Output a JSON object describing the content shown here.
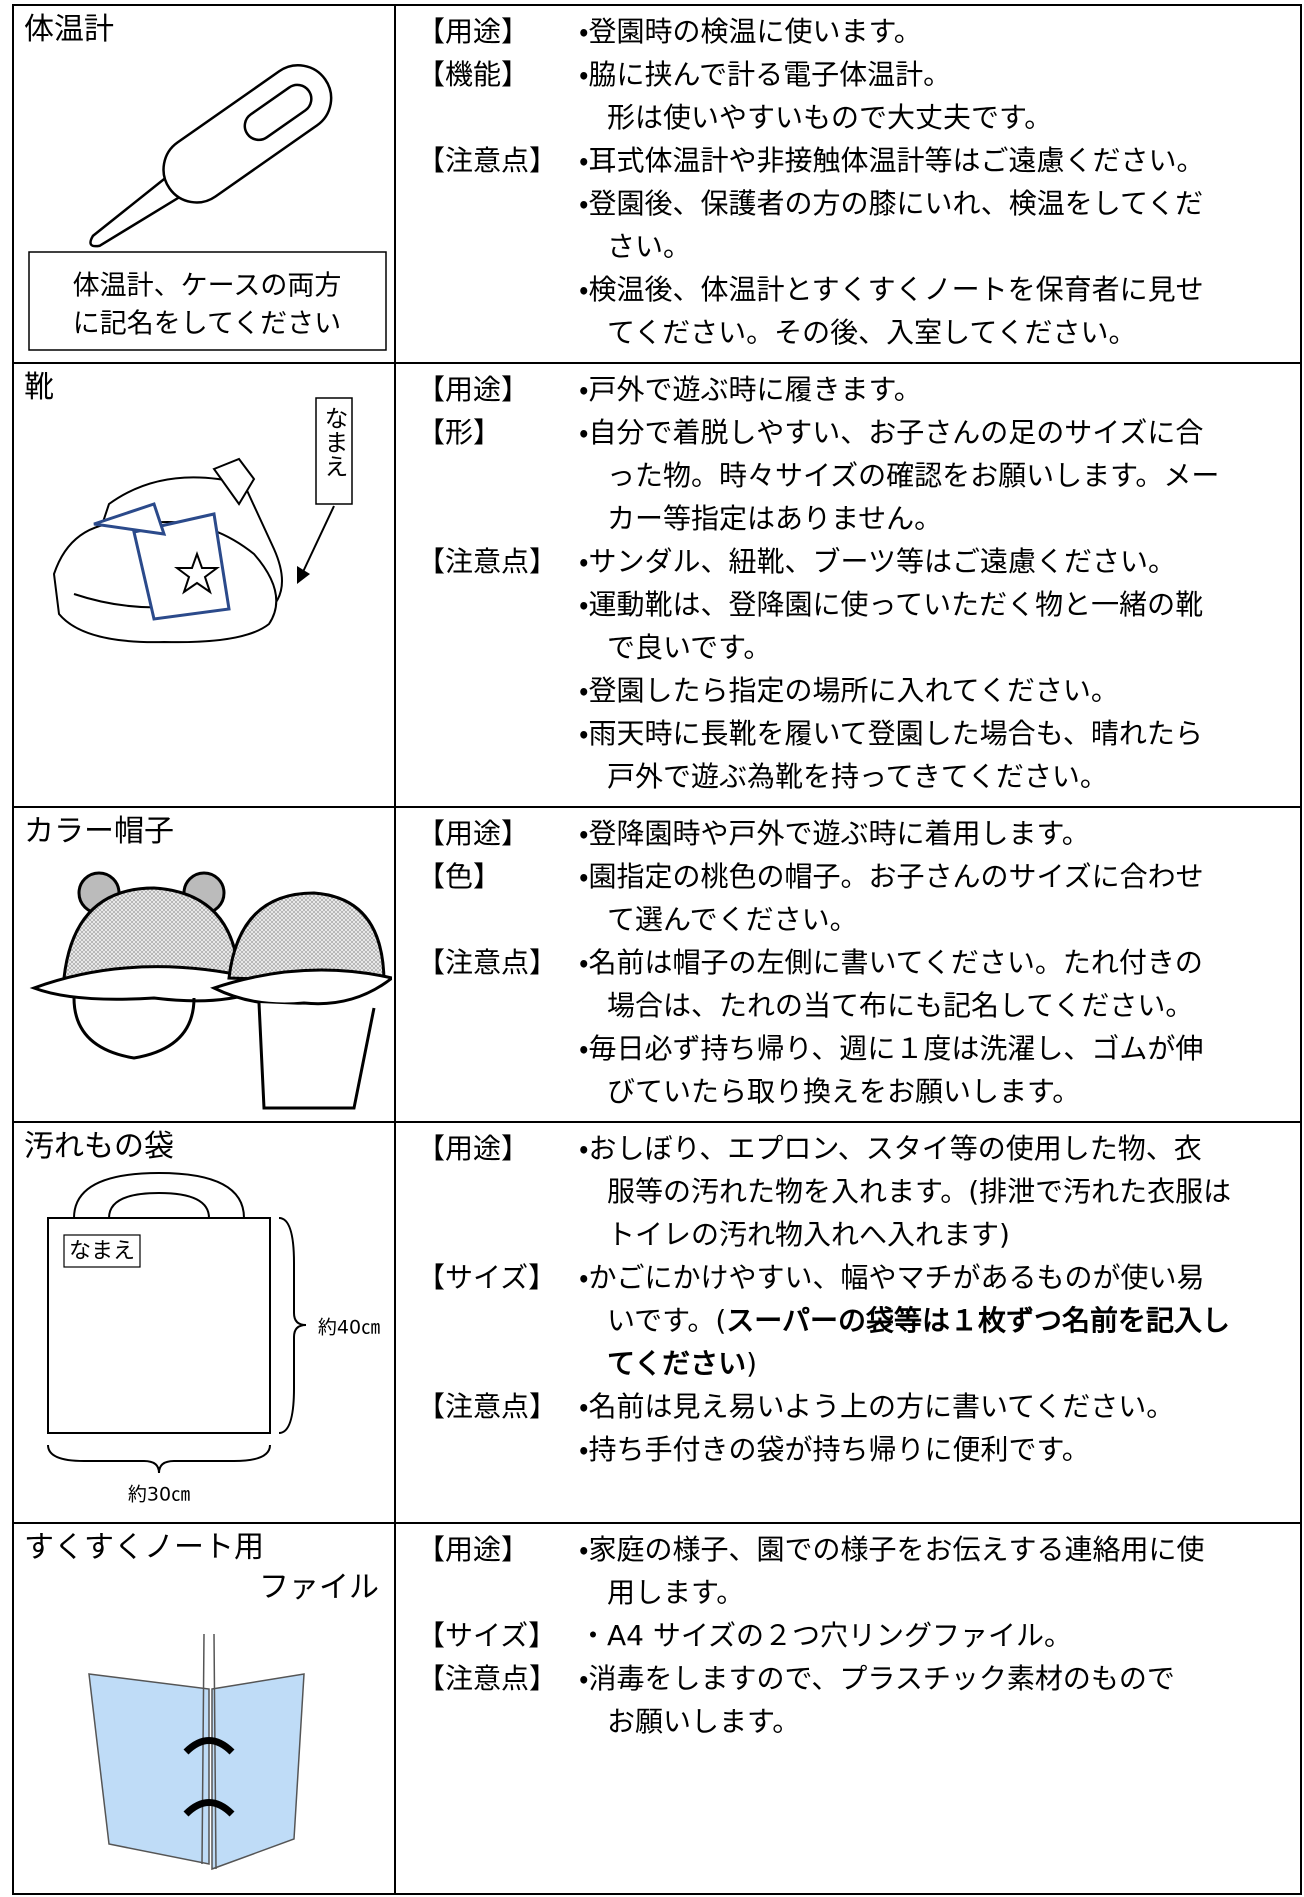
{
  "rows": [
    {
      "title": "体温計",
      "note": [
        "体温計、ケースの両方",
        "に記名をしてください"
      ],
      "items": [
        {
          "label": "【用途】",
          "lines": [
            "・登園時の検温に使います。"
          ]
        },
        {
          "label": "【機能】",
          "lines": [
            "・脇に挟んで計る電子体温計。",
            "形は使いやすいもので大丈夫です。"
          ]
        },
        {
          "label": "【注意点】",
          "lines": [
            "・耳式体温計や非接触体温計等はご遠慮ください。",
            "・登園後、保護者の方の膝にいれ、検温をしてくだ",
            "さい。",
            "・検温後、体温計とすくすくノートを保育者に見せ",
            "てください。その後、入室してください。"
          ]
        }
      ]
    },
    {
      "title": "靴",
      "image_label": "なまえ",
      "items": [
        {
          "label": "【用途】",
          "lines": [
            "・戸外で遊ぶ時に履きます。"
          ]
        },
        {
          "label": "【形】",
          "lines": [
            "・自分で着脱しやすい、お子さんの足のサイズに合",
            "った物。時々サイズの確認をお願いします。メー",
            "カー等指定はありません。"
          ]
        },
        {
          "label": "【注意点】",
          "lines": [
            "・サンダル、紐靴、ブーツ等はご遠慮ください。",
            "・運動靴は、登降園に使っていただく物と一緒の靴",
            "で良いです。",
            "・登園したら指定の場所に入れてください。",
            "・雨天時に長靴を履いて登園した場合も、晴れたら",
            "戸外で遊ぶ為靴を持ってきてください。"
          ]
        }
      ]
    },
    {
      "title": "カラー帽子",
      "items": [
        {
          "label": "【用途】",
          "lines": [
            "・登降園時や戸外で遊ぶ時に着用します。"
          ]
        },
        {
          "label": "【色】",
          "lines": [
            "・園指定の桃色の帽子。お子さんのサイズに合わせ",
            "て選んでください。"
          ]
        },
        {
          "label": "【注意点】",
          "lines": [
            "・名前は帽子の左側に書いてください。たれ付きの",
            "場合は、たれの当て布にも記名してください。",
            "・毎日必ず持ち帰り、週に１度は洗濯し、ゴムが伸",
            "びていたら取り換えをお願いします。"
          ]
        }
      ]
    },
    {
      "title": "汚れもの袋",
      "image_labels": [
        "なまえ",
        "約40㎝",
        "約30㎝"
      ],
      "items": [
        {
          "label": "【用途】",
          "lines": [
            "・おしぼり、エプロン、スタイ等の使用した物、衣",
            "服等の汚れた物を入れます。(排泄で汚れた衣服は",
            "トイレの汚れ物入れへ入れます)"
          ]
        },
        {
          "label": "【サイズ】",
          "lines": [
            "・かごにかけやすい、幅やマチがあるものが使い易",
            [
              {
                "text": "いです。("
              },
              {
                "text": "スーパーの袋等は１枚ずつ名前を記入し",
                "bold": true
              }
            ],
            [
              {
                "text": "てください",
                "bold": true
              },
              {
                "text": ")"
              }
            ]
          ]
        },
        {
          "label": "【注意点】",
          "lines": [
            "・名前は見え易いよう上の方に書いてください。",
            "・持ち手付きの袋が持ち帰りに便利です。"
          ]
        }
      ]
    },
    {
      "title": [
        "すくすくノート用",
        "ファイル"
      ],
      "items": [
        {
          "label": "【用途】",
          "lines": [
            "・家庭の様子、園での様子をお伝えする連絡用に使",
            "用します。"
          ]
        },
        {
          "label": "【サイズ】",
          "lines": [
            "・A4 サイズの２つ穴リングファイル。"
          ]
        },
        {
          "label": "【注意点】",
          "lines": [
            "・消毒をしますので、プラスチック素材のもので",
            "お願いします。"
          ]
        }
      ]
    }
  ]
}
